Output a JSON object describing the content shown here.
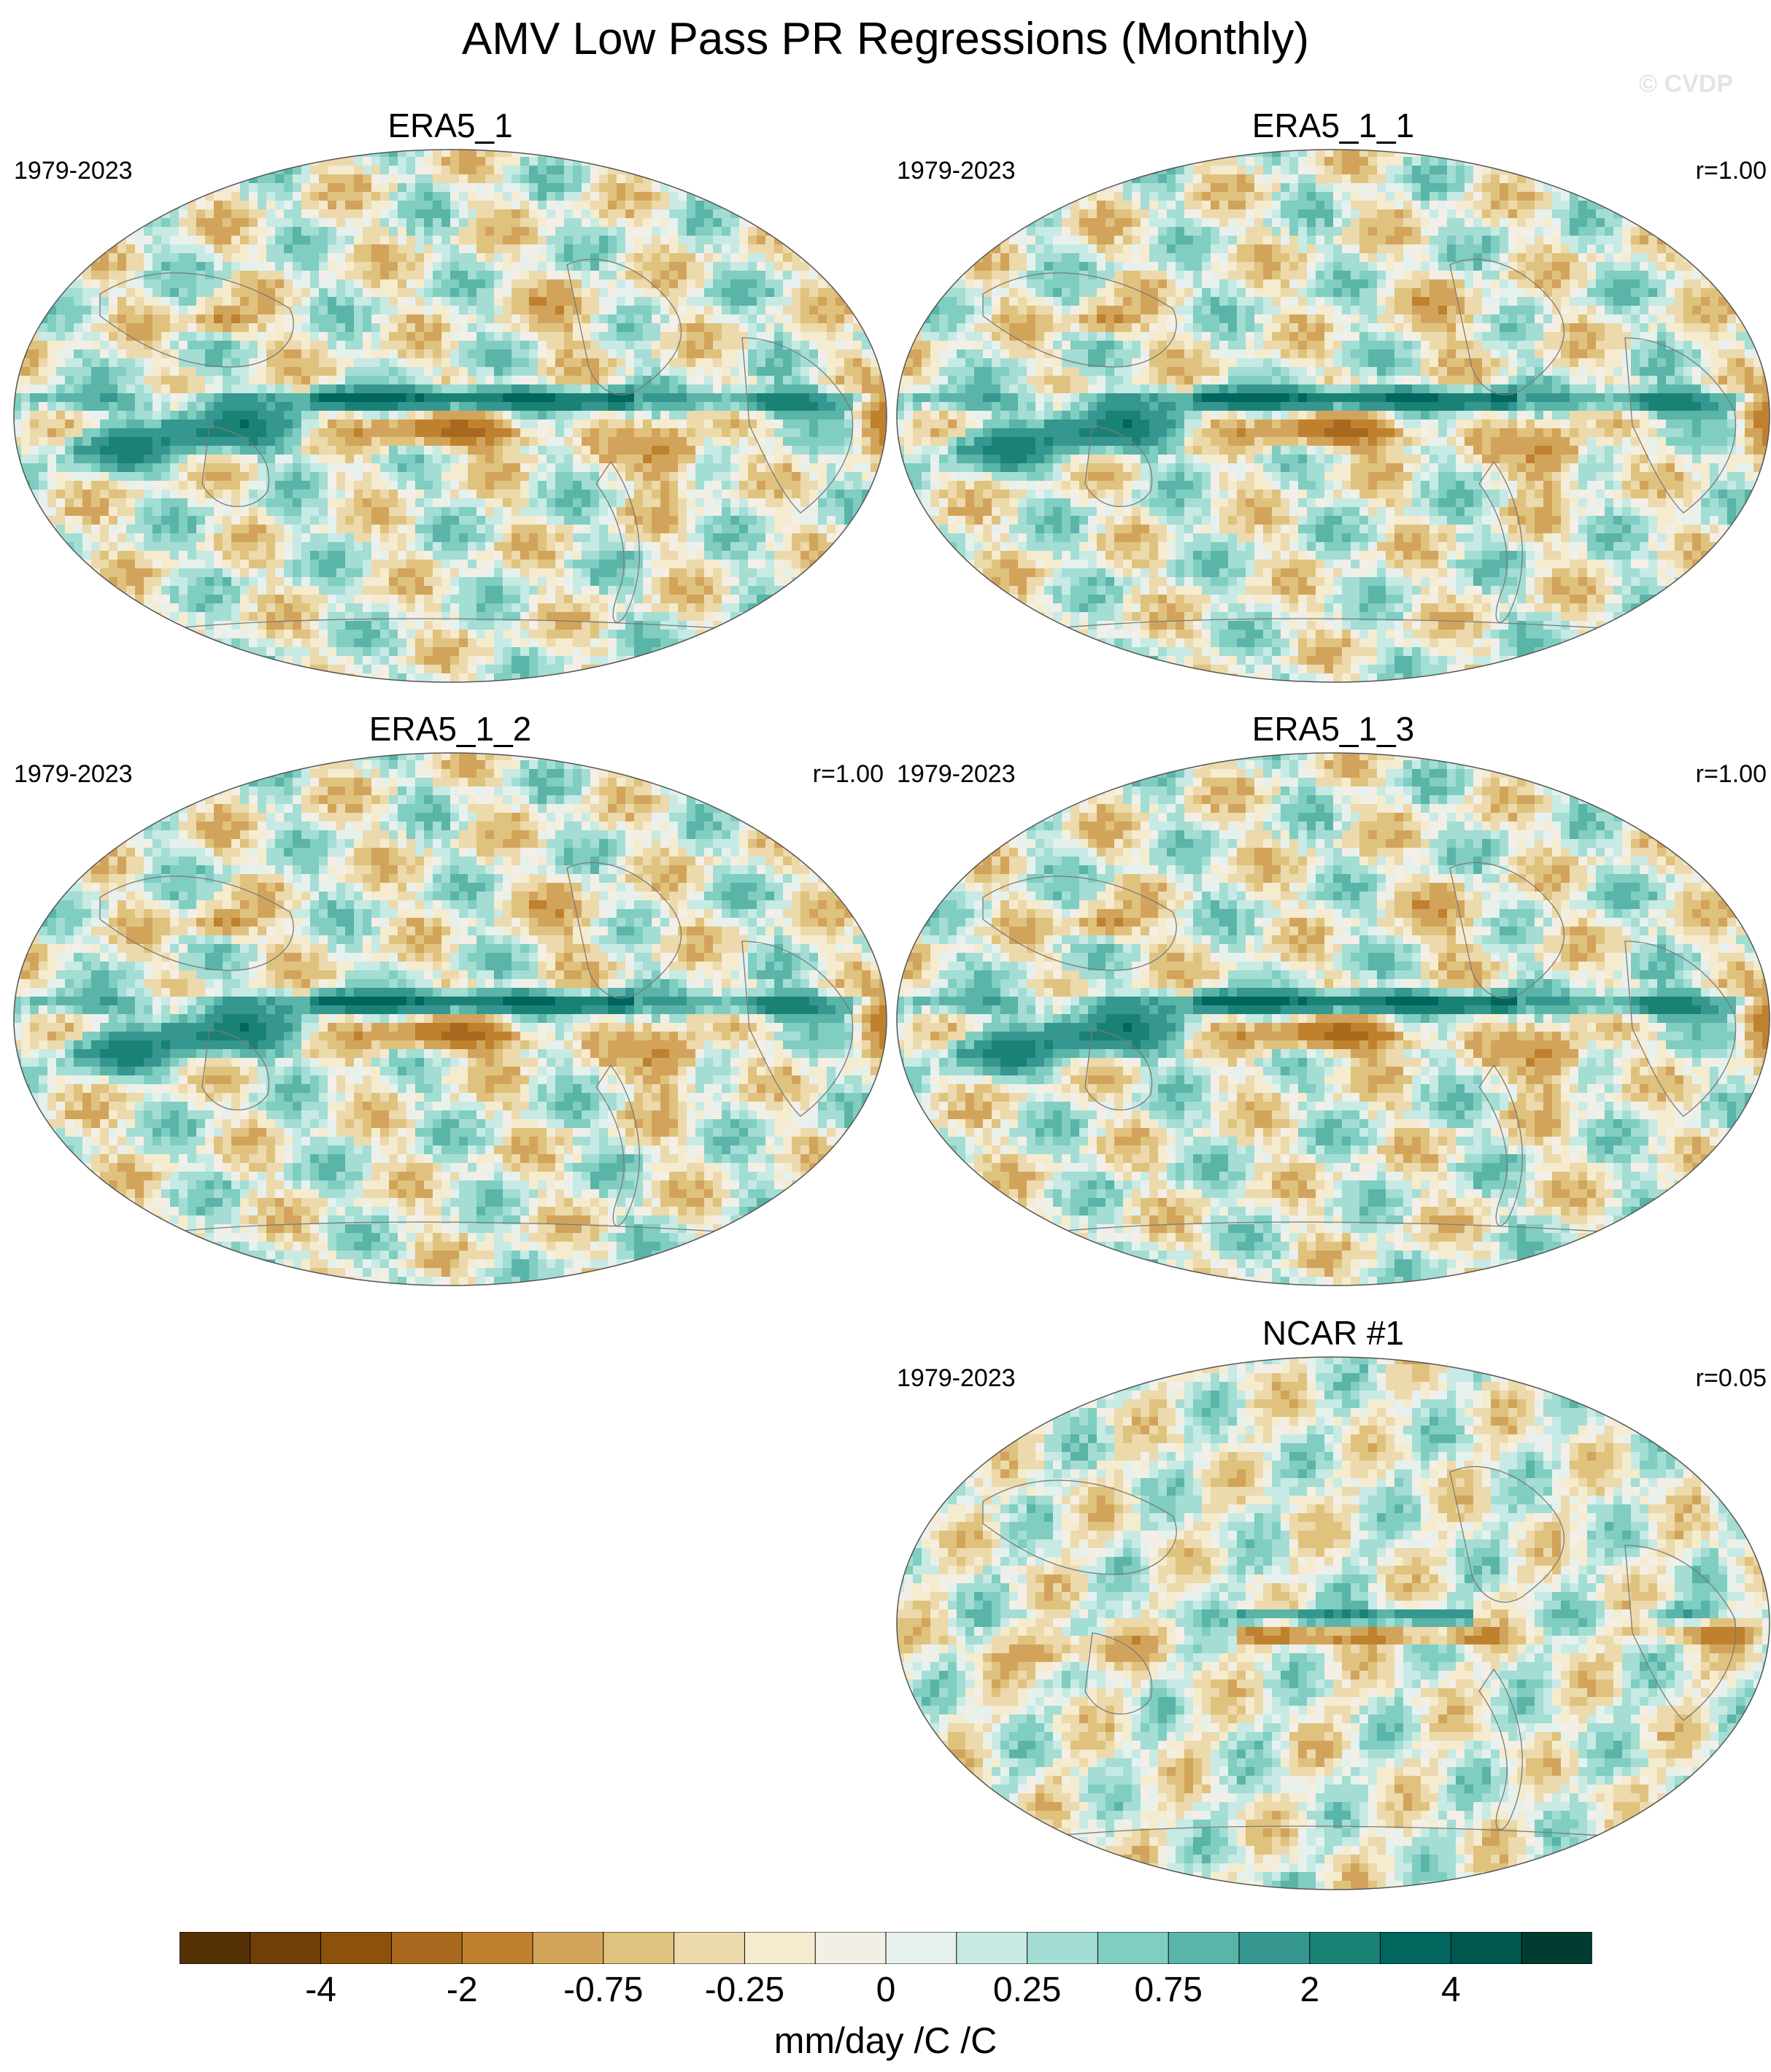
{
  "title": "AMV Low Pass PR Regressions (Monthly)",
  "watermark": "© CVDP",
  "panels": [
    {
      "title": "ERA5_1",
      "years": "1979-2023",
      "r": "",
      "style": "era"
    },
    {
      "title": "ERA5_1_1",
      "years": "1979-2023",
      "r": "r=1.00",
      "style": "era"
    },
    {
      "title": "ERA5_1_2",
      "years": "1979-2023",
      "r": "r=1.00",
      "style": "era"
    },
    {
      "title": "ERA5_1_3",
      "years": "1979-2023",
      "r": "r=1.00",
      "style": "era"
    },
    {
      "title": "NCAR #1",
      "years": "1979-2023",
      "r": "r=0.05",
      "style": "ncar"
    }
  ],
  "colorbar": {
    "labels": [
      "-4",
      "-2",
      "-0.75",
      "-0.25",
      "0",
      "0.25",
      "0.75",
      "2",
      "4"
    ],
    "units": "mm/day /C /C",
    "colors": [
      "#543005",
      "#6f3e09",
      "#8c510a",
      "#a8691e",
      "#bf812d",
      "#d2a45b",
      "#dfc27d",
      "#ecd9ac",
      "#f5ebcf",
      "#f3efe6",
      "#e6f1ee",
      "#c7eae5",
      "#a3ddd4",
      "#80cdc1",
      "#5ab4a8",
      "#35978f",
      "#1a8275",
      "#01665e",
      "#01574d",
      "#003c30"
    ]
  }
}
